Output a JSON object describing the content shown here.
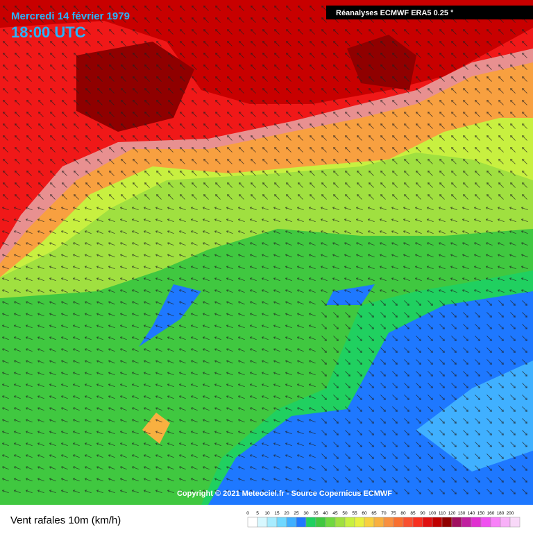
{
  "header": {
    "date": "Mercredi 14 février 1979",
    "time": "18:00 UTC",
    "source": "Réanalyses ECMWF ERA5 0.25 °"
  },
  "copyright": "Copyright © 2021 Meteociel.fr - Source Copernicus ECMWF",
  "legend": {
    "title": "Vent rafales 10m (km/h)",
    "ticks": [
      0,
      5,
      10,
      15,
      20,
      25,
      30,
      35,
      40,
      45,
      50,
      55,
      60,
      65,
      70,
      75,
      80,
      85,
      90,
      100,
      110,
      120,
      130,
      140,
      150,
      160,
      180,
      200
    ],
    "colors": [
      "#ffffff",
      "#d8f8ff",
      "#a8ecff",
      "#70d8ff",
      "#40b0ff",
      "#1e78ff",
      "#20d060",
      "#40c840",
      "#70d840",
      "#a0e040",
      "#c8f040",
      "#e8f040",
      "#f8d040",
      "#f8b040",
      "#f89040",
      "#f87030",
      "#f85030",
      "#f83020",
      "#e01010",
      "#c00000",
      "#900000",
      "#a01060",
      "#c020a0",
      "#e030d0",
      "#f050f0",
      "#f880f8",
      "#f8b0f8",
      "#f8d8f8"
    ]
  }
}
